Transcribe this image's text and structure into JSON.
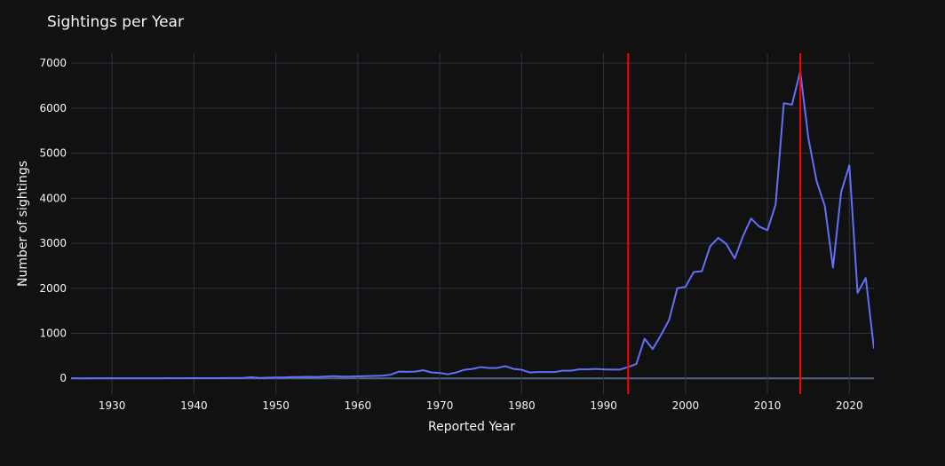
{
  "chart_data": {
    "type": "line",
    "title": "Sightings per Year",
    "x_label": "Reported Year",
    "y_label": "Number of sightings",
    "x": [
      1925,
      1926,
      1927,
      1928,
      1929,
      1930,
      1931,
      1932,
      1933,
      1934,
      1935,
      1936,
      1937,
      1938,
      1939,
      1940,
      1941,
      1942,
      1943,
      1944,
      1945,
      1946,
      1947,
      1948,
      1949,
      1950,
      1951,
      1952,
      1953,
      1954,
      1955,
      1956,
      1957,
      1958,
      1959,
      1960,
      1961,
      1962,
      1963,
      1964,
      1965,
      1966,
      1967,
      1968,
      1969,
      1970,
      1971,
      1972,
      1973,
      1974,
      1975,
      1976,
      1977,
      1978,
      1979,
      1980,
      1981,
      1982,
      1983,
      1984,
      1985,
      1986,
      1987,
      1988,
      1989,
      1990,
      1991,
      1992,
      1993,
      1994,
      1995,
      1996,
      1997,
      1998,
      1999,
      2000,
      2001,
      2002,
      2003,
      2004,
      2005,
      2006,
      2007,
      2008,
      2009,
      2010,
      2011,
      2012,
      2013,
      2014,
      2015,
      2016,
      2017,
      2018,
      2019,
      2020,
      2021,
      2022,
      2023
    ],
    "values": [
      2,
      1,
      1,
      2,
      3,
      2,
      3,
      2,
      3,
      2,
      3,
      3,
      4,
      3,
      4,
      5,
      4,
      6,
      5,
      8,
      7,
      9,
      25,
      10,
      15,
      20,
      20,
      30,
      30,
      35,
      30,
      40,
      50,
      40,
      40,
      45,
      50,
      55,
      60,
      80,
      150,
      145,
      150,
      180,
      130,
      120,
      90,
      130,
      190,
      210,
      250,
      230,
      230,
      270,
      210,
      190,
      130,
      140,
      140,
      140,
      170,
      170,
      200,
      200,
      210,
      200,
      195,
      195,
      250,
      320,
      880,
      650,
      960,
      1300,
      2000,
      2030,
      2360,
      2380,
      2930,
      3120,
      2980,
      2660,
      3150,
      3550,
      3370,
      3290,
      3860,
      6110,
      6080,
      6820,
      5330,
      4380,
      3830,
      2460,
      4140,
      4730,
      1900,
      2230,
      660
    ],
    "color": "#636efa",
    "vlines": [
      1993,
      2014
    ],
    "vline_color": "#ff0000",
    "xlim": [
      1925,
      2023
    ],
    "xticks": [
      1930,
      1940,
      1950,
      1960,
      1970,
      1980,
      1990,
      2000,
      2010,
      2020
    ],
    "ylim": [
      -350,
      7220
    ],
    "yticks": [
      0,
      1000,
      2000,
      3000,
      4000,
      5000,
      6000,
      7000
    ],
    "grid": true
  }
}
